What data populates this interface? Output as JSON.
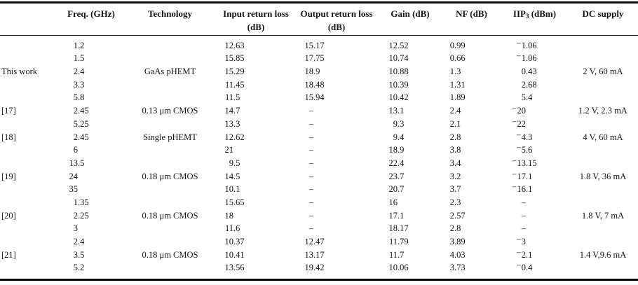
{
  "table": {
    "title": "LNA performance comparison table",
    "columns": [
      {
        "key": "label",
        "label": ""
      },
      {
        "key": "freq",
        "label": "Freq. (GHz)"
      },
      {
        "key": "tech",
        "label": "Technology"
      },
      {
        "key": "irl",
        "label": "Input return loss (dB)"
      },
      {
        "key": "orl",
        "label": "Output return loss (dB)"
      },
      {
        "key": "gain",
        "label": "Gain (dB)"
      },
      {
        "key": "nf",
        "label": "NF (dB)"
      },
      {
        "key": "iip3",
        "label": "IIP3 (dBm)",
        "label_parts": {
          "pre": "IIP",
          "sub": "3",
          "post": " (dBm)"
        }
      },
      {
        "key": "dc",
        "label": "DC supply"
      }
    ],
    "numeric_columns": [
      "freq",
      "irl",
      "orl",
      "gain",
      "nf",
      "iip3"
    ],
    "rows": [
      {
        "label": "",
        "freq": "1.2",
        "tech": "",
        "irl": "12.63",
        "orl": "15.17",
        "gain": "12.52",
        "nf": "0.99",
        "iip3": "−1.06",
        "dc": ""
      },
      {
        "label": "",
        "freq": "1.5",
        "tech": "",
        "irl": "15.85",
        "orl": "17.75",
        "gain": "10.74",
        "nf": "0.66",
        "iip3": "−1.06",
        "dc": ""
      },
      {
        "label": "This work",
        "freq": "2.4",
        "tech": "GaAs pHEMT",
        "irl": "15.29",
        "orl": "18.9",
        "gain": "10.88",
        "nf": "1.3",
        "iip3": "0.43",
        "dc": "2 V, 60 mA"
      },
      {
        "label": "",
        "freq": "3.3",
        "tech": "",
        "irl": "11.45",
        "orl": "18.48",
        "gain": "10.39",
        "nf": "1.31",
        "iip3": "2.68",
        "dc": ""
      },
      {
        "label": "",
        "freq": "5.8",
        "tech": "",
        "irl": "11.5",
        "orl": "15.94",
        "gain": "10.42",
        "nf": "1.89",
        "iip3": "5.4",
        "dc": ""
      },
      {
        "label": "[17]",
        "freq": "2.45",
        "tech": "0.13 μm CMOS",
        "irl": "14.7",
        "orl": "–",
        "gain": "13.1",
        "nf": "2.4",
        "iip3": "−20",
        "dc": "1.2 V, 2.3 mA"
      },
      {
        "label": "",
        "freq": "5.25",
        "tech": "",
        "irl": "13.3",
        "orl": "–",
        "gain": "9.3",
        "nf": "2.1",
        "iip3": "−22",
        "dc": ""
      },
      {
        "label": "[18]",
        "freq": "2.45",
        "tech": "Single pHEMT",
        "irl": "12.62",
        "orl": "–",
        "gain": "9.4",
        "nf": "2.8",
        "iip3": "−4.3",
        "dc": "4 V, 60 mA"
      },
      {
        "label": "",
        "freq": "6",
        "tech": "",
        "irl": "21",
        "orl": "–",
        "gain": "18.9",
        "nf": "3.8",
        "iip3": "−5.6",
        "dc": ""
      },
      {
        "label": "",
        "freq": "13.5",
        "tech": "",
        "irl": "9.5",
        "orl": "–",
        "gain": "22.4",
        "nf": "3.4",
        "iip3": "−13.15",
        "dc": ""
      },
      {
        "label": "[19]",
        "freq": "24",
        "tech": "0.18 μm CMOS",
        "irl": "14.5",
        "orl": "–",
        "gain": "23.7",
        "nf": "3.2",
        "iip3": "−17.1",
        "dc": "1.8 V, 36 mA"
      },
      {
        "label": "",
        "freq": "35",
        "tech": "",
        "irl": "10.1",
        "orl": "–",
        "gain": "20.7",
        "nf": "3.7",
        "iip3": "−16.1",
        "dc": ""
      },
      {
        "label": "",
        "freq": "1.35",
        "tech": "",
        "irl": "15.65",
        "orl": "–",
        "gain": "16",
        "nf": "2.3",
        "iip3": "–",
        "dc": ""
      },
      {
        "label": "[20]",
        "freq": "2.25",
        "tech": "0.18 μm CMOS",
        "irl": "18",
        "orl": "–",
        "gain": "17.1",
        "nf": "2.57",
        "iip3": "–",
        "dc": "1.8 V, 7 mA"
      },
      {
        "label": "",
        "freq": "3",
        "tech": "",
        "irl": "11.6",
        "orl": "–",
        "gain": "18.17",
        "nf": "2.8",
        "iip3": "–",
        "dc": ""
      },
      {
        "label": "",
        "freq": "2.4",
        "tech": "",
        "irl": "10.37",
        "orl": "12.47",
        "gain": "11.79",
        "nf": "3.89",
        "iip3": "−3",
        "dc": ""
      },
      {
        "label": "[21]",
        "freq": "3.5",
        "tech": "0.18 μm CMOS",
        "irl": "10.41",
        "orl": "13.17",
        "gain": "11.7",
        "nf": "4.03",
        "iip3": "−2.1",
        "dc": "1.4 V,9.6 mA"
      },
      {
        "label": "",
        "freq": "5.2",
        "tech": "",
        "irl": "13.56",
        "orl": "19.42",
        "gain": "10.06",
        "nf": "3.73",
        "iip3": "−0.4",
        "dc": ""
      }
    ],
    "colors": {
      "rule": "#0a0a0a",
      "text": "#131313",
      "background": "#ffffff"
    }
  }
}
